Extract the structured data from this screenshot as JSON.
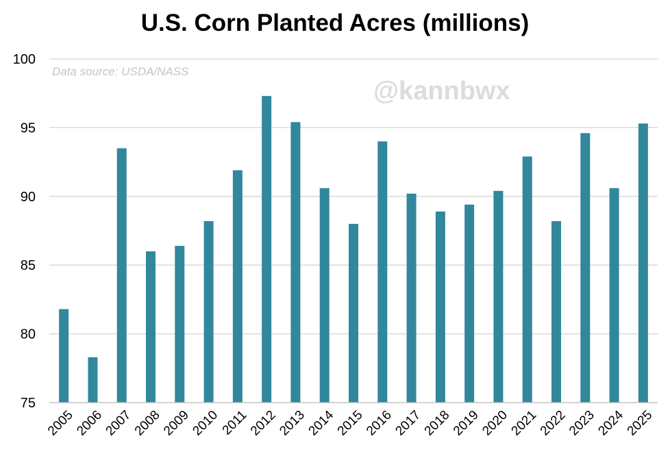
{
  "chart_data": {
    "type": "bar",
    "title": "U.S. Corn Planted Acres (millions)",
    "source_note": "Data source: USDA/NASS",
    "watermark": "@kannbwx",
    "xlabel": "",
    "ylabel": "",
    "ylim": [
      75,
      100
    ],
    "yticks": [
      75,
      80,
      85,
      90,
      95,
      100
    ],
    "grid": true,
    "legend": "none",
    "bar_color": "#31879c",
    "categories": [
      "2005",
      "2006",
      "2007",
      "2008",
      "2009",
      "2010",
      "2011",
      "2012",
      "2013",
      "2014",
      "2015",
      "2016",
      "2017",
      "2018",
      "2019",
      "2020",
      "2021",
      "2022",
      "2023",
      "2024",
      "2025"
    ],
    "values": [
      81.8,
      78.3,
      93.5,
      86.0,
      86.4,
      88.2,
      91.9,
      97.3,
      95.4,
      90.6,
      88.0,
      94.0,
      90.2,
      88.9,
      89.4,
      90.4,
      92.9,
      88.2,
      94.6,
      90.6,
      95.3
    ]
  }
}
